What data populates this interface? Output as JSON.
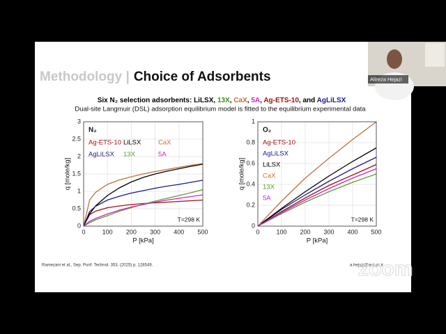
{
  "slide": {
    "title_muted": "Methodology |",
    "title": "Choice of Adsorbents",
    "subtitle_parts": [
      {
        "text": "Six N₂ selection adsorbents: ",
        "color": "#000000"
      },
      {
        "text": "LiLSX",
        "color": "#000000"
      },
      {
        "text": ", ",
        "color": "#000000"
      },
      {
        "text": "13X",
        "color": "#3f8f1e"
      },
      {
        "text": ", ",
        "color": "#000000"
      },
      {
        "text": "CaX",
        "color": "#c0703a"
      },
      {
        "text": ", ",
        "color": "#000000"
      },
      {
        "text": "5A",
        "color": "#cc22cc"
      },
      {
        "text": ", ",
        "color": "#000000"
      },
      {
        "text": "Ag-ETS-10",
        "color": "#a01010"
      },
      {
        "text": ", and ",
        "color": "#000000"
      },
      {
        "text": "AgLiLSX",
        "color": "#1a1a8c"
      }
    ],
    "subtitle2": "Dual-site Langmuir (DSL) adsorption equilibrium model is fitted to the equilibrium experimental data",
    "reference": "Ramezani et al., Sep. Purif. Technol. 353, (2025) p. 128549.",
    "email": "a.hejazi@aut.ac.ir"
  },
  "participant": {
    "name": "Alireza Hejazi"
  },
  "overlay_logo": "zoom",
  "chart_data": [
    {
      "type": "line",
      "label": "N₂",
      "annotation": "T=298 K",
      "xlabel": "P [kPa]",
      "ylabel": "q [mole/kg]",
      "grid": true,
      "legend": "upper left",
      "legend_columns": 3,
      "xlim": [
        0,
        500
      ],
      "xticks": [
        0,
        100,
        200,
        300,
        400,
        500
      ],
      "ylim": [
        0,
        3
      ],
      "yticks": [
        0,
        0.5,
        1,
        1.5,
        2,
        2.5,
        3
      ],
      "x": [
        0,
        25,
        50,
        100,
        150,
        200,
        250,
        300,
        350,
        400,
        450,
        500
      ],
      "series": [
        {
          "name": "Ag-ETS-10",
          "color": "#a01010",
          "values": [
            0,
            0.33,
            0.43,
            0.53,
            0.58,
            0.62,
            0.65,
            0.67,
            0.69,
            0.71,
            0.73,
            0.75
          ]
        },
        {
          "name": "LiLSX",
          "color": "#000000",
          "values": [
            0,
            0.35,
            0.58,
            0.88,
            1.1,
            1.27,
            1.4,
            1.5,
            1.58,
            1.65,
            1.72,
            1.78
          ]
        },
        {
          "name": "CaX",
          "color": "#c0703a",
          "values": [
            0,
            0.75,
            0.97,
            1.2,
            1.33,
            1.42,
            1.5,
            1.57,
            1.63,
            1.69,
            1.75,
            1.8
          ]
        },
        {
          "name": "AgLiLSX",
          "color": "#1a1a8c",
          "values": [
            0,
            0.42,
            0.57,
            0.75,
            0.86,
            0.95,
            1.02,
            1.09,
            1.15,
            1.2,
            1.26,
            1.32
          ]
        },
        {
          "name": "13X",
          "color": "#5aa02c",
          "values": [
            0,
            0.1,
            0.18,
            0.3,
            0.43,
            0.53,
            0.63,
            0.72,
            0.8,
            0.88,
            0.96,
            1.05
          ]
        },
        {
          "name": "5A",
          "color": "#cc22cc",
          "values": [
            0,
            0.14,
            0.22,
            0.35,
            0.46,
            0.55,
            0.62,
            0.69,
            0.75,
            0.8,
            0.85,
            0.9
          ]
        }
      ]
    },
    {
      "type": "line",
      "label": "O₂",
      "annotation": "T=298 K",
      "xlabel": "P [kPa]",
      "ylabel": "q [mole/kg]",
      "grid": true,
      "legend": "upper left",
      "legend_columns": 1,
      "xlim": [
        0,
        500
      ],
      "xticks": [
        0,
        100,
        200,
        300,
        400,
        500
      ],
      "ylim": [
        0,
        1
      ],
      "yticks": [
        0,
        0.2,
        0.4,
        0.6,
        0.8,
        1
      ],
      "x": [
        0,
        100,
        200,
        300,
        400,
        500
      ],
      "series": [
        {
          "name": "Ag-ETS-10",
          "color": "#a01010",
          "values": [
            0,
            0.14,
            0.27,
            0.39,
            0.49,
            0.59
          ]
        },
        {
          "name": "AgLiLSX",
          "color": "#1a1a8c",
          "values": [
            0,
            0.16,
            0.3,
            0.43,
            0.55,
            0.66
          ]
        },
        {
          "name": "LiLSX",
          "color": "#000000",
          "values": [
            0,
            0.17,
            0.33,
            0.48,
            0.62,
            0.75
          ]
        },
        {
          "name": "CaX",
          "color": "#c0703a",
          "values": [
            0,
            0.24,
            0.46,
            0.65,
            0.83,
            1.0
          ]
        },
        {
          "name": "13X",
          "color": "#5aa02c",
          "values": [
            0,
            0.12,
            0.23,
            0.33,
            0.42,
            0.5
          ]
        },
        {
          "name": "5A",
          "color": "#cc22cc",
          "values": [
            0,
            0.13,
            0.25,
            0.36,
            0.46,
            0.55
          ]
        }
      ]
    }
  ]
}
